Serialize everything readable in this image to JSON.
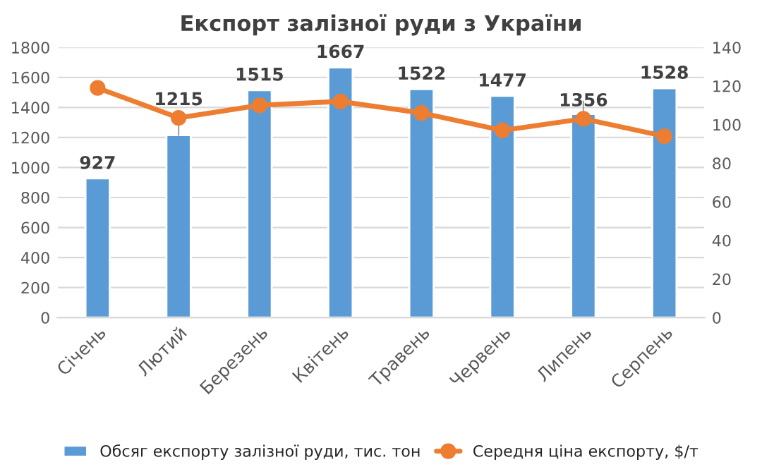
{
  "chart_data": {
    "type": "bar",
    "title": "Експорт залізної руди з України",
    "categories": [
      "Січень",
      "Лютий",
      "Березень",
      "Квітень",
      "Травень",
      "Червень",
      "Липень",
      "Серпень"
    ],
    "series": [
      {
        "name": "Обсяг експорту залізної руди, тис. тон",
        "color": "#5b9bd5",
        "values": [
          927,
          1215,
          1515,
          1667,
          1522,
          1477,
          1356,
          1528
        ],
        "value_labels": [
          "927",
          "1215",
          "1515",
          "1667",
          "1522",
          "1477",
          "1356",
          "1528"
        ]
      },
      {
        "name": "Середня ціна експорту, $/т",
        "type": "line",
        "axis": "y2",
        "color": "#ed7d31",
        "marker": "circle",
        "values": [
          119,
          103.5,
          110,
          112,
          106,
          97,
          103,
          94
        ]
      }
    ],
    "ylim": [
      0,
      1800
    ],
    "yticks": [
      0,
      200,
      400,
      600,
      800,
      1000,
      1200,
      1400,
      1600,
      1800
    ],
    "y2lim": [
      0,
      140
    ],
    "y2ticks": [
      0,
      20,
      40,
      60,
      80,
      100,
      120,
      140
    ],
    "grid": "y",
    "legend": "bottom"
  }
}
